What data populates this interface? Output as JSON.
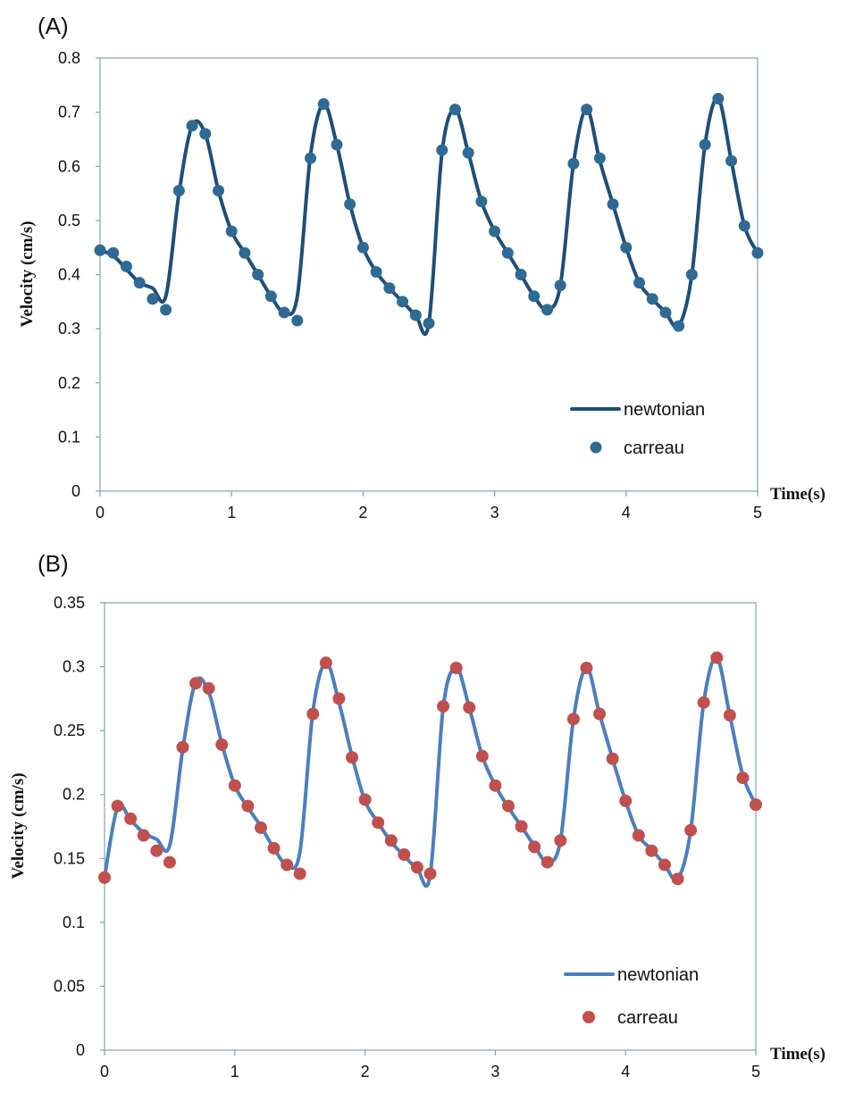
{
  "chart_data": [
    {
      "type": "line",
      "panel_label": "(A)",
      "xlabel": "Time(s)",
      "ylabel": "Velocity (cm/s)",
      "xlim": [
        0,
        5
      ],
      "ylim": [
        0,
        0.8
      ],
      "xticks": [
        "0",
        "1",
        "2",
        "3",
        "4",
        "5"
      ],
      "yticks": [
        "0",
        "0.1",
        "0.2",
        "0.3",
        "0.4",
        "0.5",
        "0.6",
        "0.7",
        "0.8"
      ],
      "colors": {
        "line": "#1f4e79",
        "marker": "#2e6b94"
      },
      "legend": {
        "position": "bottom-right",
        "line_label": "newtonian",
        "marker_label": "carreau"
      },
      "series": [
        {
          "name": "newtonian",
          "style": "line",
          "x": [
            0,
            0.1,
            0.2,
            0.3,
            0.4,
            0.5,
            0.6,
            0.7,
            0.8,
            0.9,
            1.0,
            1.1,
            1.2,
            1.3,
            1.4,
            1.5,
            1.6,
            1.7,
            1.8,
            1.9,
            2.0,
            2.1,
            2.2,
            2.3,
            2.4,
            2.5,
            2.6,
            2.7,
            2.8,
            2.9,
            3.0,
            3.1,
            3.2,
            3.3,
            3.4,
            3.5,
            3.6,
            3.7,
            3.8,
            3.9,
            4.0,
            4.1,
            4.2,
            4.3,
            4.4,
            4.5,
            4.6,
            4.7,
            4.8,
            4.9,
            5.0
          ],
          "y": [
            0.445,
            0.435,
            0.41,
            0.385,
            0.375,
            0.36,
            0.55,
            0.675,
            0.66,
            0.555,
            0.48,
            0.44,
            0.4,
            0.36,
            0.33,
            0.36,
            0.62,
            0.715,
            0.64,
            0.53,
            0.45,
            0.405,
            0.375,
            0.35,
            0.325,
            0.31,
            0.625,
            0.705,
            0.625,
            0.535,
            0.48,
            0.44,
            0.4,
            0.36,
            0.335,
            0.38,
            0.605,
            0.705,
            0.61,
            0.53,
            0.45,
            0.385,
            0.355,
            0.33,
            0.305,
            0.4,
            0.64,
            0.725,
            0.61,
            0.49,
            0.44
          ]
        },
        {
          "name": "carreau",
          "style": "markers",
          "x": [
            0,
            0.1,
            0.2,
            0.3,
            0.4,
            0.5,
            0.6,
            0.7,
            0.8,
            0.9,
            1.0,
            1.1,
            1.2,
            1.3,
            1.4,
            1.5,
            1.6,
            1.7,
            1.8,
            1.9,
            2.0,
            2.1,
            2.2,
            2.3,
            2.4,
            2.5,
            2.6,
            2.7,
            2.8,
            2.9,
            3.0,
            3.1,
            3.2,
            3.3,
            3.4,
            3.5,
            3.6,
            3.7,
            3.8,
            3.9,
            4.0,
            4.1,
            4.2,
            4.3,
            4.4,
            4.5,
            4.6,
            4.7,
            4.8,
            4.9,
            5.0
          ],
          "y": [
            0.445,
            0.44,
            0.415,
            0.385,
            0.355,
            0.335,
            0.555,
            0.675,
            0.66,
            0.555,
            0.48,
            0.44,
            0.4,
            0.36,
            0.33,
            0.315,
            0.615,
            0.715,
            0.64,
            0.53,
            0.45,
            0.405,
            0.375,
            0.35,
            0.325,
            0.31,
            0.63,
            0.705,
            0.625,
            0.535,
            0.48,
            0.44,
            0.4,
            0.36,
            0.335,
            0.38,
            0.605,
            0.705,
            0.615,
            0.53,
            0.45,
            0.385,
            0.355,
            0.33,
            0.305,
            0.4,
            0.64,
            0.725,
            0.61,
            0.49,
            0.44
          ]
        }
      ]
    },
    {
      "type": "line",
      "panel_label": "(B)",
      "xlabel": "Time(s)",
      "ylabel": "Velocity (cm/s)",
      "xlim": [
        0,
        5
      ],
      "ylim": [
        0,
        0.35
      ],
      "xticks": [
        "0",
        "1",
        "2",
        "3",
        "4",
        "5"
      ],
      "yticks": [
        "0",
        "0.05",
        "0.1",
        "0.15",
        "0.2",
        "0.25",
        "0.3",
        "0.35"
      ],
      "colors": {
        "line": "#4a7fbf",
        "marker": "#c0504d"
      },
      "legend": {
        "position": "bottom-right",
        "line_label": "newtonian",
        "marker_label": "carreau"
      },
      "series": [
        {
          "name": "newtonian",
          "style": "line",
          "x": [
            0,
            0.1,
            0.2,
            0.3,
            0.4,
            0.5,
            0.6,
            0.7,
            0.8,
            0.9,
            1.0,
            1.1,
            1.2,
            1.3,
            1.4,
            1.5,
            1.6,
            1.7,
            1.8,
            1.9,
            2.0,
            2.1,
            2.2,
            2.3,
            2.4,
            2.5,
            2.6,
            2.7,
            2.8,
            2.9,
            3.0,
            3.1,
            3.2,
            3.3,
            3.4,
            3.5,
            3.6,
            3.7,
            3.8,
            3.9,
            4.0,
            4.1,
            4.2,
            4.3,
            4.4,
            4.5,
            4.6,
            4.7,
            4.8,
            4.9,
            5.0
          ],
          "y": [
            0.135,
            0.19,
            0.18,
            0.17,
            0.165,
            0.16,
            0.235,
            0.288,
            0.28,
            0.24,
            0.207,
            0.19,
            0.175,
            0.158,
            0.145,
            0.155,
            0.265,
            0.303,
            0.272,
            0.23,
            0.195,
            0.178,
            0.163,
            0.152,
            0.142,
            0.137,
            0.268,
            0.299,
            0.268,
            0.23,
            0.207,
            0.19,
            0.175,
            0.16,
            0.147,
            0.164,
            0.259,
            0.299,
            0.263,
            0.228,
            0.195,
            0.168,
            0.157,
            0.145,
            0.134,
            0.172,
            0.272,
            0.307,
            0.262,
            0.215,
            0.192
          ]
        },
        {
          "name": "carreau",
          "style": "markers",
          "x": [
            0,
            0.1,
            0.2,
            0.3,
            0.4,
            0.5,
            0.6,
            0.7,
            0.8,
            0.9,
            1.0,
            1.1,
            1.2,
            1.3,
            1.4,
            1.5,
            1.6,
            1.7,
            1.8,
            1.9,
            2.0,
            2.1,
            2.2,
            2.3,
            2.4,
            2.5,
            2.6,
            2.7,
            2.8,
            2.9,
            3.0,
            3.1,
            3.2,
            3.3,
            3.4,
            3.5,
            3.6,
            3.7,
            3.8,
            3.9,
            4.0,
            4.1,
            4.2,
            4.3,
            4.4,
            4.5,
            4.6,
            4.7,
            4.8,
            4.9,
            5.0
          ],
          "y": [
            0.135,
            0.191,
            0.181,
            0.168,
            0.156,
            0.147,
            0.237,
            0.287,
            0.283,
            0.239,
            0.207,
            0.191,
            0.174,
            0.158,
            0.145,
            0.138,
            0.263,
            0.303,
            0.275,
            0.229,
            0.196,
            0.178,
            0.164,
            0.153,
            0.143,
            0.138,
            0.269,
            0.299,
            0.268,
            0.23,
            0.207,
            0.191,
            0.175,
            0.159,
            0.147,
            0.164,
            0.259,
            0.299,
            0.263,
            0.228,
            0.195,
            0.168,
            0.156,
            0.145,
            0.134,
            0.172,
            0.272,
            0.307,
            0.262,
            0.213,
            0.192
          ]
        }
      ]
    }
  ]
}
